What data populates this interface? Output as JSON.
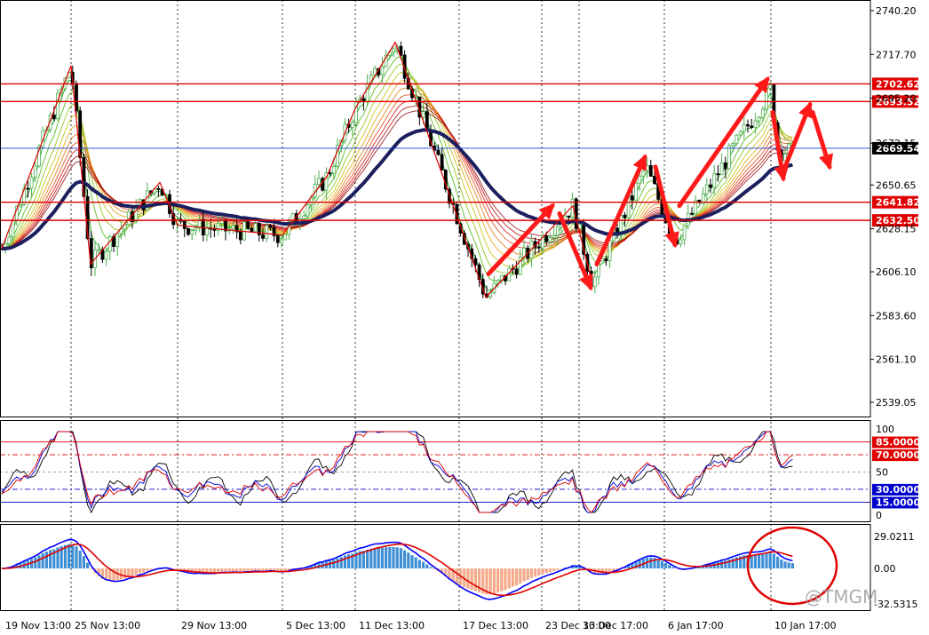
{
  "chart_data": {
    "type": "candlestick",
    "price_axis": {
      "ticks": [
        "2740.20",
        "2717.70",
        "2695.20",
        "2672.15",
        "2650.65",
        "2628.15",
        "2606.10",
        "2583.60",
        "2561.10",
        "2539.05"
      ],
      "ylim": [
        2530,
        2745
      ]
    },
    "x_axis": {
      "labels": [
        "19 Nov 13:00",
        "25 Nov 13:00",
        "29 Nov 13:00",
        "5 Dec 13:00",
        "11 Dec 13:00",
        "17 Dec 13:00",
        "23 Dec 13:00",
        "30 Dec 17:00",
        "6 Jan 17:00",
        "10 Jan 17:00"
      ],
      "grid": "vertical-dotted"
    },
    "price_levels": [
      {
        "label": "2702.62",
        "value": 2702.62,
        "color": "#e00000"
      },
      {
        "label": "2693.52",
        "value": 2693.52,
        "color": "#e00000"
      },
      {
        "label": "2669.54",
        "value": 2669.54,
        "color": "#000000"
      },
      {
        "label": "2641.82",
        "value": 2641.82,
        "color": "#e00000"
      },
      {
        "label": "2632.50",
        "value": 2632.5,
        "color": "#e00000"
      }
    ],
    "price_path": [
      [
        "19 Nov 13:00",
        2618
      ],
      [
        "25 Nov 13:00",
        2712
      ],
      [
        "25 Nov 13:00",
        2610
      ],
      [
        "29 Nov 13:00",
        2652
      ],
      [
        "29 Nov 13:00",
        2630
      ],
      [
        "5 Dec 13:00",
        2655
      ],
      [
        "5 Dec 13:00",
        2625
      ],
      [
        "11 Dec 13:00",
        2724
      ],
      [
        "11 Dec 13:00",
        2690
      ],
      [
        "17 Dec 13:00",
        2593
      ],
      [
        "23 Dec 13:00",
        2640
      ],
      [
        "30 Dec 17:00",
        2600
      ],
      [
        "30 Dec 17:00",
        2660
      ],
      [
        "6 Jan 17:00",
        2622
      ],
      [
        "10 Jan 17:00",
        2700
      ],
      [
        "10 Jan 17:00",
        2668
      ]
    ],
    "ribbon_note": "moving-average ribbon with a heavy navy long-term average",
    "oscillator": {
      "ylim": [
        0,
        100
      ],
      "ticks": [
        "100",
        "50",
        "0"
      ],
      "levels": [
        {
          "label": "85.0000",
          "value": 85,
          "color": "#e00000"
        },
        {
          "label": "70.0000",
          "value": 70,
          "color": "#e00000"
        },
        {
          "label": "30.0000",
          "value": 30,
          "color": "#0000cc"
        },
        {
          "label": "15.0000",
          "value": 15,
          "color": "#0000cc"
        }
      ]
    },
    "macd": {
      "ticks": [
        "29.0211",
        "0.00",
        "-32.5315"
      ],
      "ylim": [
        -32.5315,
        29.0211
      ]
    }
  },
  "colors": {
    "bull_candle": "#4caf50",
    "bear_candle": "#000000",
    "level_line": "#e00000",
    "long_ma": "#1b1f5e",
    "arrow": "#ff1a1a",
    "macd_hist_pos": "#3f8fd6",
    "macd_hist_neg": "#f4a989",
    "macd_line": "#0000ff",
    "signal_line": "#e00000"
  },
  "watermark": "@TMGM"
}
